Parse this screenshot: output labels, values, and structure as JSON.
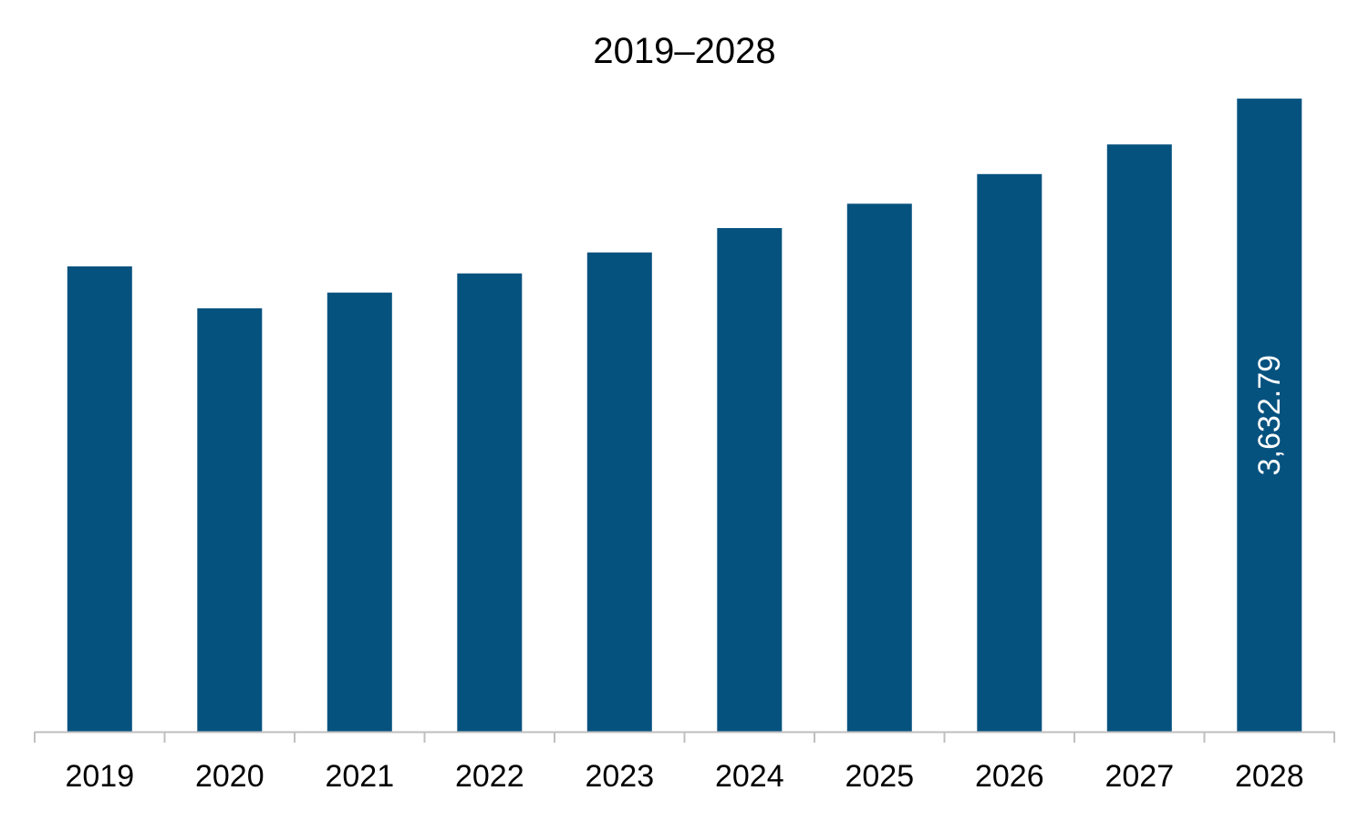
{
  "chart_data": {
    "type": "bar",
    "title": "2019–2028",
    "categories": [
      "2019",
      "2020",
      "2021",
      "2022",
      "2023",
      "2024",
      "2025",
      "2026",
      "2027",
      "2028"
    ],
    "values": [
      2670,
      2430,
      2520,
      2630,
      2750,
      2890,
      3030,
      3200,
      3370,
      3632.79
    ],
    "value_labels": [
      "",
      "",
      "",
      "",
      "",
      "",
      "",
      "",
      "",
      "3,632.79"
    ],
    "ylim": [
      0,
      3780
    ],
    "grid": false,
    "legend": "none",
    "bar_color": "#06527f",
    "axis_color": "#bfbfbf"
  }
}
